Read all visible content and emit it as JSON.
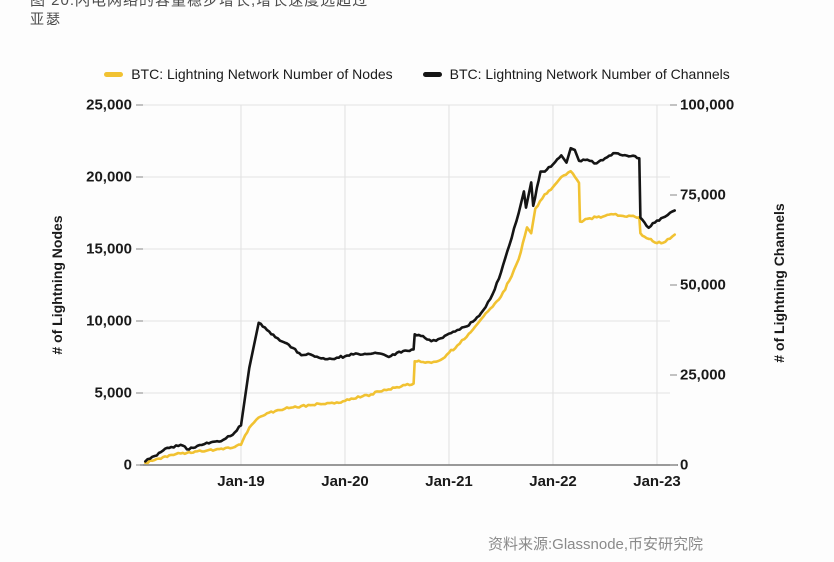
{
  "title": {
    "line1_partial": "图 20:闪电网络的容量稳步增长,增长速度远超过",
    "line2": "亚瑟"
  },
  "legend": {
    "nodes_label": "BTC: Lightning Network Number of Nodes",
    "channels_label": "BTC: Lightning Network Number of Channels"
  },
  "source_note": "资料来源:Glassnode,币安研究院",
  "colors": {
    "nodes_line": "#F1C232",
    "channels_line": "#151515",
    "grid": "#e3e3e3",
    "axis_line": "#787878",
    "tick_mark": "#9a9a9a"
  },
  "chart_data": {
    "type": "line",
    "grid": true,
    "legend_position": "top",
    "x_axis": {
      "tick_labels": [
        "Jan-19",
        "Jan-20",
        "Jan-21",
        "Jan-22",
        "Jan-23"
      ],
      "tick_years": [
        2019,
        2020,
        2021,
        2022,
        2023
      ],
      "range_years": [
        2018.05,
        2023.3
      ]
    },
    "y_left": {
      "label": "# of Lightning Nodes",
      "ticks": [
        "25,000",
        "20,000",
        "15,000",
        "10,000",
        "5,000",
        "0"
      ],
      "tick_values": [
        25000,
        20000,
        15000,
        10000,
        5000,
        0
      ],
      "range": [
        0,
        25000
      ]
    },
    "y_right": {
      "label": "# of Lightning Channels",
      "ticks": [
        "100,000",
        "75,000",
        "50,000",
        "25,000",
        "0"
      ],
      "tick_values": [
        100000,
        75000,
        50000,
        25000,
        0
      ],
      "range": [
        0,
        100000
      ]
    },
    "series": [
      {
        "name": "BTC: Lightning Network Number of Nodes",
        "axis": "left",
        "color": "#F1C232",
        "points": [
          [
            2018.08,
            150
          ],
          [
            2018.17,
            350
          ],
          [
            2018.25,
            550
          ],
          [
            2018.33,
            700
          ],
          [
            2018.42,
            800
          ],
          [
            2018.5,
            900
          ],
          [
            2018.58,
            950
          ],
          [
            2018.67,
            1000
          ],
          [
            2018.75,
            1050
          ],
          [
            2018.83,
            1100
          ],
          [
            2018.92,
            1200
          ],
          [
            2019.0,
            1400
          ],
          [
            2019.08,
            2600
          ],
          [
            2019.17,
            3300
          ],
          [
            2019.25,
            3600
          ],
          [
            2019.33,
            3750
          ],
          [
            2019.42,
            3900
          ],
          [
            2019.5,
            4000
          ],
          [
            2019.58,
            4100
          ],
          [
            2019.67,
            4150
          ],
          [
            2019.75,
            4250
          ],
          [
            2019.83,
            4300
          ],
          [
            2019.92,
            4350
          ],
          [
            2020.0,
            4450
          ],
          [
            2020.08,
            4600
          ],
          [
            2020.17,
            4780
          ],
          [
            2020.25,
            4900
          ],
          [
            2020.33,
            5100
          ],
          [
            2020.42,
            5250
          ],
          [
            2020.5,
            5400
          ],
          [
            2020.58,
            5550
          ],
          [
            2020.66,
            5650
          ],
          [
            2020.67,
            7200
          ],
          [
            2020.75,
            7150
          ],
          [
            2020.83,
            7100
          ],
          [
            2020.92,
            7300
          ],
          [
            2021.0,
            7800
          ],
          [
            2021.08,
            8300
          ],
          [
            2021.17,
            8900
          ],
          [
            2021.25,
            9600
          ],
          [
            2021.33,
            10300
          ],
          [
            2021.42,
            11000
          ],
          [
            2021.5,
            11700
          ],
          [
            2021.58,
            12800
          ],
          [
            2021.67,
            14300
          ],
          [
            2021.75,
            16500
          ],
          [
            2021.79,
            16100
          ],
          [
            2021.83,
            17800
          ],
          [
            2021.92,
            18800
          ],
          [
            2022.0,
            19300
          ],
          [
            2022.08,
            20000
          ],
          [
            2022.17,
            20400
          ],
          [
            2022.25,
            19600
          ],
          [
            2022.26,
            16900
          ],
          [
            2022.33,
            17100
          ],
          [
            2022.42,
            17200
          ],
          [
            2022.5,
            17300
          ],
          [
            2022.58,
            17400
          ],
          [
            2022.67,
            17300
          ],
          [
            2022.75,
            17300
          ],
          [
            2022.83,
            17200
          ],
          [
            2022.84,
            16100
          ],
          [
            2022.92,
            15700
          ],
          [
            2023.0,
            15400
          ],
          [
            2023.08,
            15500
          ],
          [
            2023.17,
            16000
          ]
        ]
      },
      {
        "name": "BTC: Lightning Network Number of Channels",
        "axis": "right",
        "color": "#151515",
        "points": [
          [
            2018.08,
            1000
          ],
          [
            2018.17,
            2500
          ],
          [
            2018.25,
            4000
          ],
          [
            2018.33,
            5000
          ],
          [
            2018.42,
            5600
          ],
          [
            2018.5,
            4300
          ],
          [
            2018.58,
            5300
          ],
          [
            2018.67,
            6200
          ],
          [
            2018.75,
            6500
          ],
          [
            2018.83,
            7000
          ],
          [
            2018.92,
            8400
          ],
          [
            2019.0,
            11000
          ],
          [
            2019.08,
            27000
          ],
          [
            2019.17,
            39500
          ],
          [
            2019.25,
            37500
          ],
          [
            2019.33,
            35500
          ],
          [
            2019.42,
            34000
          ],
          [
            2019.5,
            32500
          ],
          [
            2019.58,
            30500
          ],
          [
            2019.67,
            30700
          ],
          [
            2019.75,
            29800
          ],
          [
            2019.83,
            29400
          ],
          [
            2019.92,
            29800
          ],
          [
            2020.0,
            30200
          ],
          [
            2020.08,
            30700
          ],
          [
            2020.17,
            30700
          ],
          [
            2020.25,
            30900
          ],
          [
            2020.33,
            31000
          ],
          [
            2020.42,
            30000
          ],
          [
            2020.5,
            31200
          ],
          [
            2020.58,
            31800
          ],
          [
            2020.66,
            32100
          ],
          [
            2020.67,
            36300
          ],
          [
            2020.75,
            35800
          ],
          [
            2020.83,
            34400
          ],
          [
            2020.92,
            35200
          ],
          [
            2021.0,
            36500
          ],
          [
            2021.08,
            37500
          ],
          [
            2021.17,
            38500
          ],
          [
            2021.25,
            40300
          ],
          [
            2021.33,
            43000
          ],
          [
            2021.42,
            47500
          ],
          [
            2021.5,
            53500
          ],
          [
            2021.58,
            61000
          ],
          [
            2021.67,
            70000
          ],
          [
            2021.72,
            76000
          ],
          [
            2021.74,
            71500
          ],
          [
            2021.79,
            78500
          ],
          [
            2021.81,
            72000
          ],
          [
            2021.88,
            81500
          ],
          [
            2021.92,
            81500
          ],
          [
            2022.0,
            83500
          ],
          [
            2022.08,
            86000
          ],
          [
            2022.13,
            84000
          ],
          [
            2022.17,
            88000
          ],
          [
            2022.21,
            87500
          ],
          [
            2022.25,
            84500
          ],
          [
            2022.33,
            84800
          ],
          [
            2022.42,
            83800
          ],
          [
            2022.5,
            85200
          ],
          [
            2022.58,
            86600
          ],
          [
            2022.67,
            86000
          ],
          [
            2022.75,
            85800
          ],
          [
            2022.83,
            85200
          ],
          [
            2022.84,
            68700
          ],
          [
            2022.92,
            65900
          ],
          [
            2023.0,
            67900
          ],
          [
            2023.08,
            69000
          ],
          [
            2023.17,
            70700
          ]
        ]
      }
    ]
  }
}
